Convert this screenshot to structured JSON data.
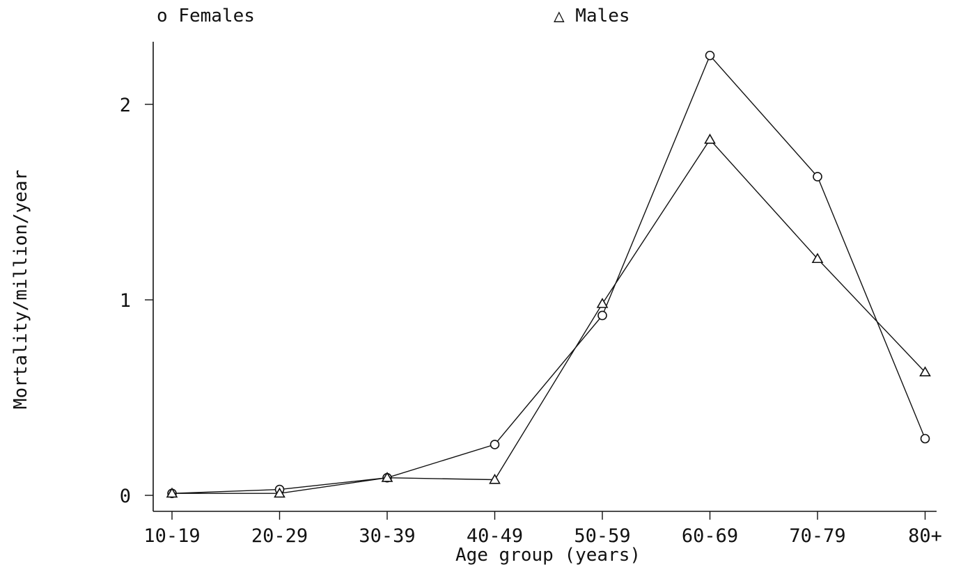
{
  "chart_data": {
    "type": "line",
    "xlabel": "Age group (years)",
    "ylabel": "Mortality/million/year",
    "categories": [
      "10-19",
      "20-29",
      "30-39",
      "40-49",
      "50-59",
      "60-69",
      "70-79",
      "80+"
    ],
    "yticks": [
      0,
      1,
      2
    ],
    "ylim": [
      -0.08,
      2.32
    ],
    "grid": false,
    "legend_placement": "top",
    "series": [
      {
        "name": "Females",
        "legend_label": "o Females",
        "marker": "circle",
        "values": [
          0.01,
          0.03,
          0.09,
          0.26,
          0.92,
          2.25,
          1.63,
          0.29
        ]
      },
      {
        "name": "Males",
        "legend_label": "△ Males",
        "marker": "triangle",
        "values": [
          0.01,
          0.01,
          0.09,
          0.08,
          0.98,
          1.82,
          1.21,
          0.63
        ]
      }
    ]
  }
}
